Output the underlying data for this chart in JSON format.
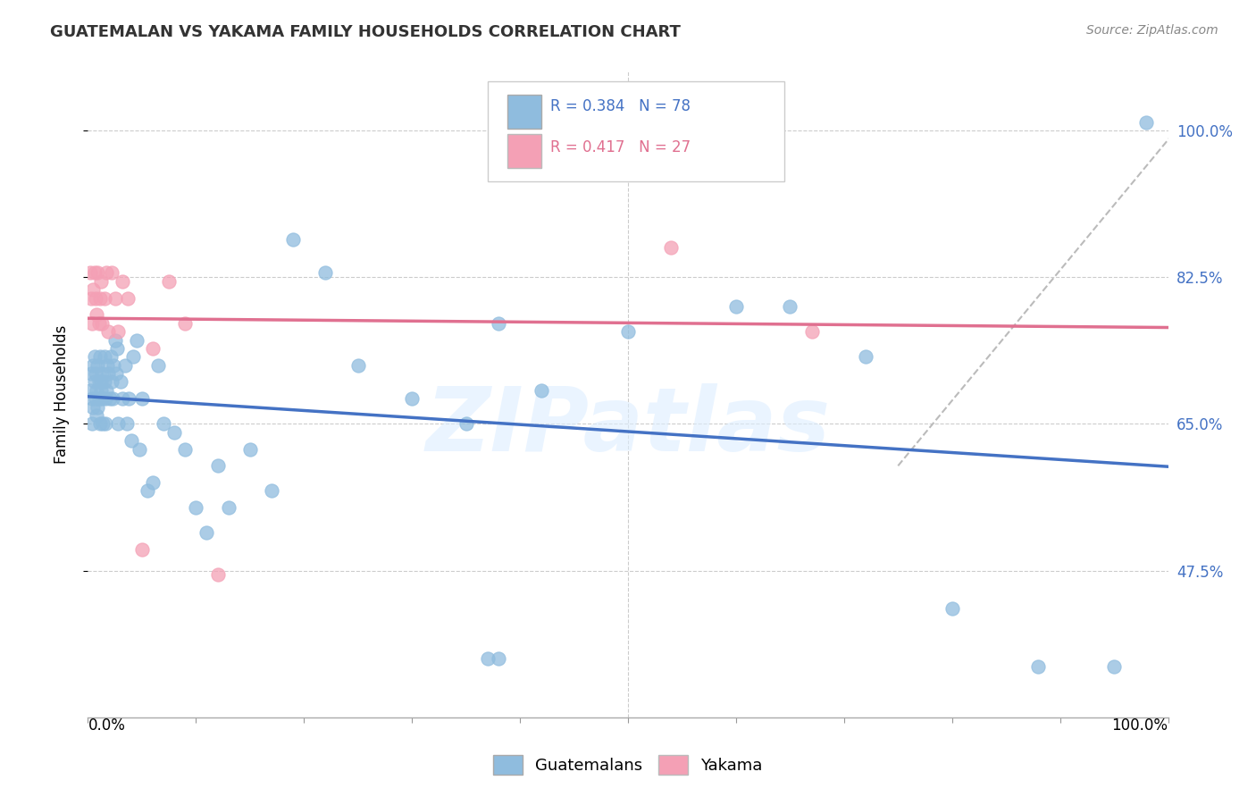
{
  "title": "GUATEMALAN VS YAKAMA FAMILY HOUSEHOLDS CORRELATION CHART",
  "source": "Source: ZipAtlas.com",
  "ylabel": "Family Households",
  "xlim": [
    0.0,
    1.0
  ],
  "ylim": [
    0.3,
    1.07
  ],
  "yticks": [
    0.475,
    0.65,
    0.825,
    1.0
  ],
  "ytick_labels": [
    "47.5%",
    "65.0%",
    "82.5%",
    "100.0%"
  ],
  "blue_color": "#8FBCDE",
  "blue_line_color": "#4472C4",
  "pink_color": "#F4A0B5",
  "pink_line_color": "#E07090",
  "dash_color": "#BBBBBB",
  "watermark": "ZIPatlas",
  "legend_label_guatemalans": "Guatemalans",
  "legend_label_yakama": "Yakama",
  "blue_scatter_x": [
    0.002,
    0.003,
    0.004,
    0.004,
    0.005,
    0.005,
    0.006,
    0.006,
    0.007,
    0.007,
    0.008,
    0.008,
    0.009,
    0.009,
    0.01,
    0.01,
    0.011,
    0.011,
    0.012,
    0.012,
    0.013,
    0.013,
    0.014,
    0.015,
    0.015,
    0.016,
    0.016,
    0.017,
    0.018,
    0.019,
    0.02,
    0.021,
    0.022,
    0.023,
    0.024,
    0.025,
    0.026,
    0.027,
    0.028,
    0.03,
    0.032,
    0.034,
    0.036,
    0.038,
    0.04,
    0.042,
    0.045,
    0.048,
    0.05,
    0.055,
    0.06,
    0.065,
    0.07,
    0.08,
    0.09,
    0.1,
    0.11,
    0.12,
    0.13,
    0.15,
    0.17,
    0.19,
    0.22,
    0.25,
    0.3,
    0.35,
    0.38,
    0.42,
    0.5,
    0.6,
    0.65,
    0.72,
    0.8,
    0.88,
    0.95,
    0.98,
    0.37,
    0.38
  ],
  "blue_scatter_y": [
    0.69,
    0.71,
    0.68,
    0.65,
    0.72,
    0.67,
    0.7,
    0.73,
    0.68,
    0.71,
    0.69,
    0.66,
    0.72,
    0.67,
    0.7,
    0.68,
    0.73,
    0.65,
    0.7,
    0.69,
    0.71,
    0.68,
    0.65,
    0.7,
    0.73,
    0.68,
    0.65,
    0.69,
    0.72,
    0.71,
    0.68,
    0.73,
    0.7,
    0.68,
    0.72,
    0.75,
    0.71,
    0.74,
    0.65,
    0.7,
    0.68,
    0.72,
    0.65,
    0.68,
    0.63,
    0.73,
    0.75,
    0.62,
    0.68,
    0.57,
    0.58,
    0.72,
    0.65,
    0.64,
    0.62,
    0.55,
    0.52,
    0.6,
    0.55,
    0.62,
    0.57,
    0.87,
    0.83,
    0.72,
    0.68,
    0.65,
    0.77,
    0.69,
    0.76,
    0.79,
    0.79,
    0.73,
    0.43,
    0.36,
    0.36,
    1.01,
    0.37,
    0.37
  ],
  "pink_scatter_x": [
    0.002,
    0.003,
    0.004,
    0.005,
    0.006,
    0.007,
    0.008,
    0.009,
    0.01,
    0.011,
    0.012,
    0.013,
    0.015,
    0.017,
    0.019,
    0.022,
    0.025,
    0.028,
    0.032,
    0.037,
    0.05,
    0.06,
    0.075,
    0.09,
    0.12,
    0.54,
    0.67
  ],
  "pink_scatter_y": [
    0.83,
    0.8,
    0.77,
    0.81,
    0.83,
    0.8,
    0.78,
    0.83,
    0.77,
    0.8,
    0.82,
    0.77,
    0.8,
    0.83,
    0.76,
    0.83,
    0.8,
    0.76,
    0.82,
    0.8,
    0.5,
    0.74,
    0.82,
    0.77,
    0.47,
    0.86,
    0.76
  ],
  "background_color": "#FFFFFF",
  "grid_color": "#CCCCCC"
}
